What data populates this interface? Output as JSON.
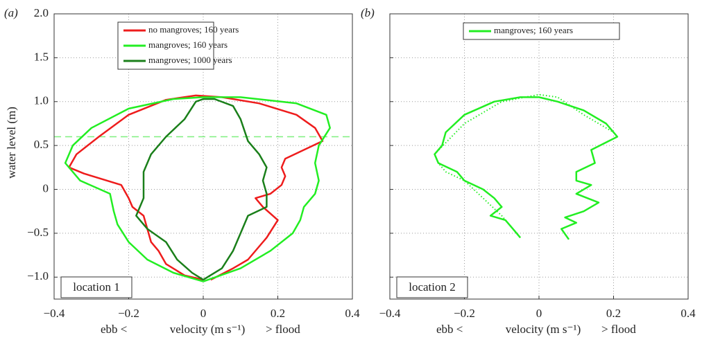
{
  "chart_data": [
    {
      "type": "line",
      "panel_label": "(a)",
      "annotation": "location 1",
      "ylabel": "water level (m)",
      "xlabel_left": "ebb <",
      "xlabel": "velocity (m s⁻¹)",
      "xlabel_right": "> flood",
      "xlim": [
        -0.4,
        0.4
      ],
      "ylim": [
        -1.25,
        2.0
      ],
      "xticks": [
        {
          "value": -0.4,
          "label": "−0.4"
        },
        {
          "value": -0.2,
          "label": "−0.2"
        },
        0,
        0.2,
        0.4
      ],
      "yticks": [
        {
          "value": -1.0,
          "label": "−1.0"
        },
        {
          "value": -0.5,
          "label": "−0.5"
        },
        0,
        0.5,
        {
          "value": 1.0,
          "label": "1.0"
        },
        1.5,
        {
          "value": 2.0,
          "label": "2.0"
        }
      ],
      "ytick_labels": true,
      "grid": true,
      "hline": {
        "value": 0.6,
        "color": "#7ff07f"
      },
      "series": [
        {
          "name": "no mangroves; 160 years",
          "color": "#ee1c1c",
          "x": [
            0.02,
            0.08,
            0.12,
            0.17,
            0.2,
            0.16,
            0.14,
            0.18,
            0.21,
            0.22,
            0.21,
            0.22,
            0.27,
            0.32,
            0.3,
            0.25,
            0.15,
            0.05,
            -0.02,
            -0.1,
            -0.2,
            -0.28,
            -0.34,
            -0.36,
            -0.32,
            -0.22,
            -0.2,
            -0.19,
            -0.16,
            -0.15,
            -0.14,
            -0.12,
            -0.1,
            -0.05,
            0
          ],
          "y": [
            -1.03,
            -0.9,
            -0.8,
            -0.55,
            -0.35,
            -0.2,
            -0.1,
            -0.05,
            0.05,
            0.15,
            0.25,
            0.35,
            0.45,
            0.55,
            0.7,
            0.85,
            0.98,
            1.05,
            1.07,
            1.02,
            0.85,
            0.6,
            0.4,
            0.25,
            0.18,
            0.05,
            -0.1,
            -0.2,
            -0.3,
            -0.45,
            -0.6,
            -0.7,
            -0.85,
            -0.98,
            -1.03
          ]
        },
        {
          "name": "mangroves; 160 years",
          "color": "#22ee22",
          "x": [
            0,
            0.1,
            0.18,
            0.24,
            0.26,
            0.27,
            0.3,
            0.31,
            0.3,
            0.31,
            0.34,
            0.33,
            0.25,
            0.1,
            0,
            -0.08,
            -0.2,
            -0.3,
            -0.35,
            -0.37,
            -0.33,
            -0.25,
            -0.24,
            -0.23,
            -0.2,
            -0.15,
            -0.08,
            0
          ],
          "y": [
            -1.05,
            -0.9,
            -0.7,
            -0.5,
            -0.35,
            -0.2,
            -0.05,
            0.1,
            0.3,
            0.5,
            0.7,
            0.85,
            0.98,
            1.05,
            1.05,
            1.03,
            0.92,
            0.7,
            0.5,
            0.3,
            0.1,
            -0.05,
            -0.25,
            -0.4,
            -0.6,
            -0.8,
            -0.95,
            -1.05
          ]
        },
        {
          "name": "mangroves; 1000 years",
          "color": "#1a7f1a",
          "x": [
            0,
            0.05,
            0.08,
            0.1,
            0.12,
            0.17,
            0.17,
            0.16,
            0.17,
            0.15,
            0.12,
            0.1,
            0.08,
            0.03,
            0,
            -0.02,
            -0.05,
            -0.1,
            -0.14,
            -0.16,
            -0.16,
            -0.16,
            -0.18,
            -0.15,
            -0.1,
            -0.07,
            -0.03,
            0
          ],
          "y": [
            -1.03,
            -0.9,
            -0.7,
            -0.5,
            -0.3,
            -0.2,
            -0.05,
            0.1,
            0.25,
            0.4,
            0.55,
            0.8,
            0.95,
            1.03,
            1.03,
            1.0,
            0.8,
            0.6,
            0.4,
            0.2,
            0,
            -0.1,
            -0.3,
            -0.45,
            -0.6,
            -0.8,
            -0.95,
            -1.03
          ]
        }
      ]
    },
    {
      "type": "line",
      "panel_label": "(b)",
      "annotation": "location 2",
      "xlabel_left": "ebb <",
      "xlabel": "velocity (m s⁻¹)",
      "xlabel_right": "> flood",
      "xlim": [
        -0.4,
        0.4
      ],
      "ylim": [
        -1.25,
        2.0
      ],
      "xticks": [
        {
          "value": -0.4,
          "label": "−0.4"
        },
        {
          "value": -0.2,
          "label": "−0.2"
        },
        0,
        0.2,
        0.4
      ],
      "yticks": [
        -1.0,
        -0.5,
        0,
        0.5,
        1.0,
        1.5,
        2.0
      ],
      "ytick_labels": false,
      "grid": true,
      "series": [
        {
          "name": "mangroves; 160 years",
          "color": "#22ee22",
          "x": [
            0.08,
            0.06,
            0.1,
            0.07,
            0.12,
            0.16,
            0.1,
            0.14,
            0.1,
            0.1,
            0.15,
            0.14,
            0.21,
            0.18,
            0.12,
            0.05,
            0,
            -0.05,
            -0.12,
            -0.2,
            -0.25,
            -0.26,
            -0.28,
            -0.27,
            -0.22,
            -0.2,
            -0.15,
            -0.12,
            -0.1,
            -0.13,
            -0.09,
            -0.07,
            -0.05
          ],
          "y": [
            -0.57,
            -0.45,
            -0.38,
            -0.32,
            -0.25,
            -0.15,
            -0.05,
            0.05,
            0.1,
            0.2,
            0.3,
            0.45,
            0.6,
            0.75,
            0.9,
            1.0,
            1.05,
            1.05,
            1.0,
            0.85,
            0.65,
            0.5,
            0.4,
            0.3,
            0.2,
            0.1,
            0,
            -0.1,
            -0.2,
            -0.3,
            -0.35,
            -0.45,
            -0.55
          ]
        },
        {
          "color": "#22ee22",
          "dash": "dotted",
          "x": [
            -0.05,
            -0.1,
            -0.15,
            -0.2,
            -0.25,
            -0.27,
            -0.28,
            -0.2,
            -0.1,
            0,
            0.05,
            0.12,
            0.2,
            0.21
          ],
          "y": [
            -0.55,
            -0.3,
            -0.1,
            0.1,
            0.2,
            0.3,
            0.4,
            0.75,
            1.0,
            1.08,
            1.05,
            0.85,
            0.65,
            0.6
          ]
        }
      ]
    }
  ]
}
